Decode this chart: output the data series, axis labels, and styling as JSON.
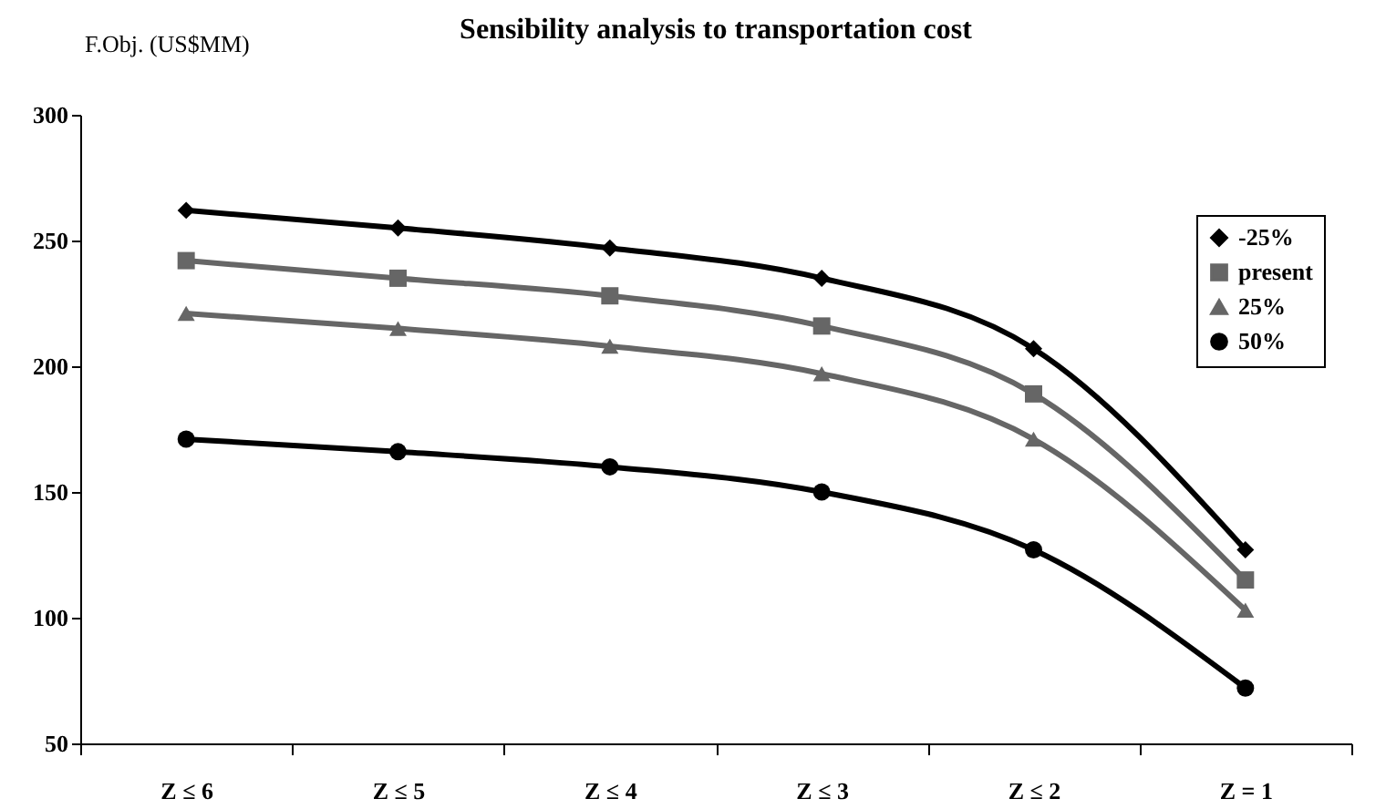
{
  "chart_data": {
    "type": "line",
    "title": "Sensibility analysis to transportation cost",
    "ylabel": "F.Obj. (US$MM)",
    "categories": [
      "Z ≤ 6",
      "Z ≤ 5",
      "Z ≤ 4",
      "Z ≤ 3",
      "Z ≤ 2",
      "Z = 1"
    ],
    "ylim": [
      50,
      300
    ],
    "yticks": [
      50,
      100,
      150,
      200,
      250,
      300
    ],
    "grid": false,
    "legend": "right",
    "series": [
      {
        "name": "-25%",
        "color": "#000000",
        "marker": "diamond",
        "values": [
          262,
          255,
          247,
          235,
          207,
          127
        ]
      },
      {
        "name": "present",
        "color": "#666666",
        "marker": "square",
        "values": [
          242,
          235,
          228,
          216,
          189,
          115
        ]
      },
      {
        "name": "25%",
        "color": "#666666",
        "marker": "triangle",
        "values": [
          221,
          215,
          208,
          197,
          171,
          103
        ]
      },
      {
        "name": "50%",
        "color": "#000000",
        "marker": "circle",
        "values": [
          171,
          166,
          160,
          150,
          127,
          72
        ]
      }
    ]
  }
}
